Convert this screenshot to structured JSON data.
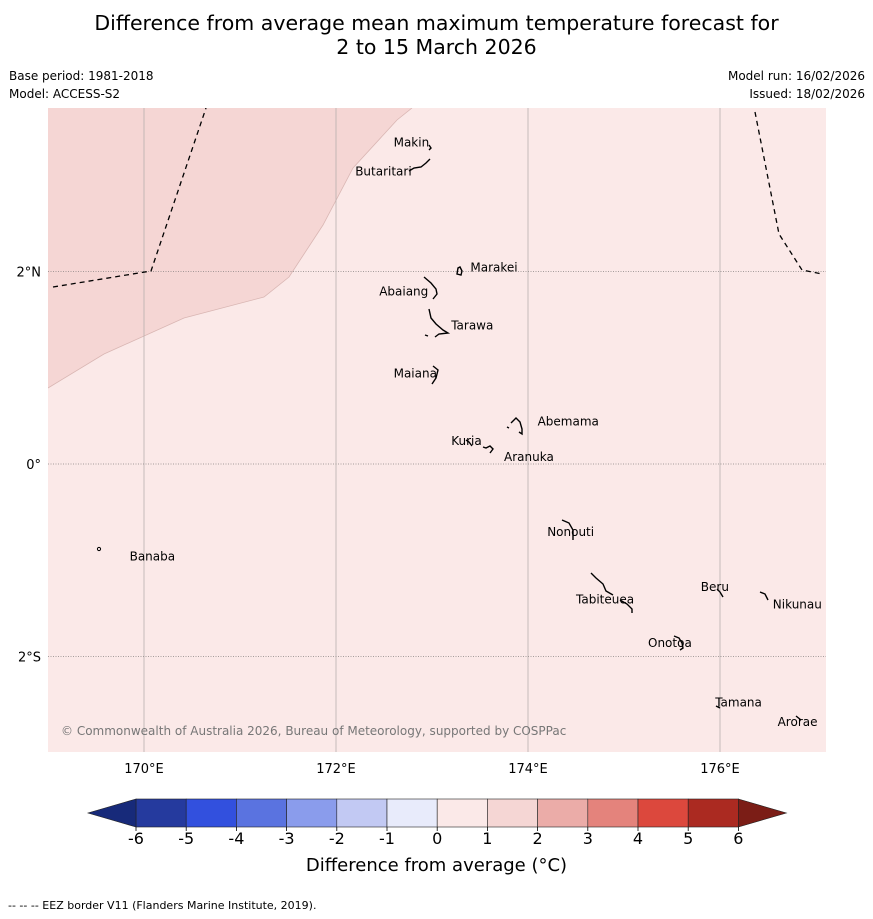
{
  "title": {
    "line1": "Difference from average mean maximum temperature forecast for",
    "line2": "2 to 15 March 2026"
  },
  "meta": {
    "base_period": "Base period: 1981-2018",
    "model": "Model: ACCESS-S2",
    "model_run": "Model run: 16/02/2026",
    "issued": "Issued: 18/02/2026"
  },
  "map": {
    "lon_range": [
      169,
      177.1
    ],
    "lat_range": [
      -3.0,
      3.7
    ],
    "lon_ticks": [
      {
        "value": 170,
        "label": "170°E"
      },
      {
        "value": 172,
        "label": "172°E"
      },
      {
        "value": 174,
        "label": "174°E"
      },
      {
        "value": 176,
        "label": "176°E"
      }
    ],
    "lat_ticks": [
      {
        "value": 2,
        "label": "2°N"
      },
      {
        "value": 0,
        "label": "0°"
      },
      {
        "value": -2,
        "label": "2°S"
      }
    ],
    "places": [
      {
        "name": "Makin",
        "lon": 172.6,
        "lat": 3.3
      },
      {
        "name": "Butaritari",
        "lon": 172.2,
        "lat": 3.0
      },
      {
        "name": "Marakei",
        "lon": 173.4,
        "lat": 2.0
      },
      {
        "name": "Abaiang",
        "lon": 172.45,
        "lat": 1.75
      },
      {
        "name": "Tarawa",
        "lon": 173.2,
        "lat": 1.4
      },
      {
        "name": "Maiana",
        "lon": 172.6,
        "lat": 0.9
      },
      {
        "name": "Abemama",
        "lon": 174.1,
        "lat": 0.4
      },
      {
        "name": "Kuria",
        "lon": 173.2,
        "lat": 0.2
      },
      {
        "name": "Aranuka",
        "lon": 173.75,
        "lat": 0.03
      },
      {
        "name": "Nonouti",
        "lon": 174.2,
        "lat": -0.75
      },
      {
        "name": "Banaba",
        "lon": 169.85,
        "lat": -1.0
      },
      {
        "name": "Tabiteuea",
        "lon": 174.5,
        "lat": -1.45
      },
      {
        "name": "Beru",
        "lon": 175.8,
        "lat": -1.32
      },
      {
        "name": "Nikunau",
        "lon": 176.55,
        "lat": -1.5
      },
      {
        "name": "Onotoa",
        "lon": 175.25,
        "lat": -1.9
      },
      {
        "name": "Tamana",
        "lon": 175.95,
        "lat": -2.52
      },
      {
        "name": "Arorae",
        "lon": 176.6,
        "lat": -2.72
      }
    ],
    "copyright": "© Commonwealth of Australia 2026, Bureau of Meteorology, supported by COSPPac",
    "fill_colors": {
      "band_0_1": "#fbe9e8",
      "band_1_2": "#f5d6d4"
    }
  },
  "colorbar": {
    "ticks": [
      "-6",
      "-5",
      "-4",
      "-3",
      "-2",
      "-1",
      "0",
      "1",
      "2",
      "3",
      "4",
      "5",
      "6"
    ],
    "colors": [
      "#253a9e",
      "#3250de",
      "#5a73e0",
      "#8a9cec",
      "#c2c9f3",
      "#e8ebfb",
      "#fbe9e8",
      "#f5d6d4",
      "#ebaca8",
      "#e4837c",
      "#dc483d",
      "#ab2a21"
    ],
    "under_color": "#172a7a",
    "over_color": "#7b1d16",
    "label": "Difference from average (°C)"
  },
  "footer": "--  --  -- EEZ border V11 (Flanders Marine Institute, 2019)."
}
